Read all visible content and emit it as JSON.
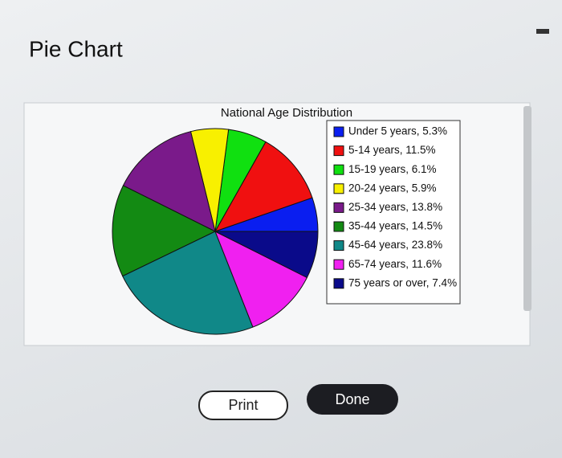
{
  "page": {
    "heading": "Pie Chart",
    "buttons": [
      "Print",
      "Done"
    ]
  },
  "chart_data": {
    "type": "pie",
    "title": "National Age Distribution",
    "categories": [
      "Under 5 years, 5.3%",
      "5-14 years, 11.5%",
      "15-19 years, 6.1%",
      "20-24 years, 5.9%",
      "25-34 years, 13.8%",
      "35-44 years, 14.5%",
      "45-64 years, 23.8%",
      "65-74 years, 11.6%",
      "75 years or over, 7.4%"
    ],
    "values": [
      5.3,
      11.5,
      6.1,
      5.9,
      13.8,
      14.5,
      23.8,
      11.6,
      7.4
    ],
    "colors": [
      "#0a1ef0",
      "#f01010",
      "#10e010",
      "#f8f000",
      "#7a1a8a",
      "#138a13",
      "#108888",
      "#f020f0",
      "#0a0a8a"
    ],
    "legend": "right"
  }
}
